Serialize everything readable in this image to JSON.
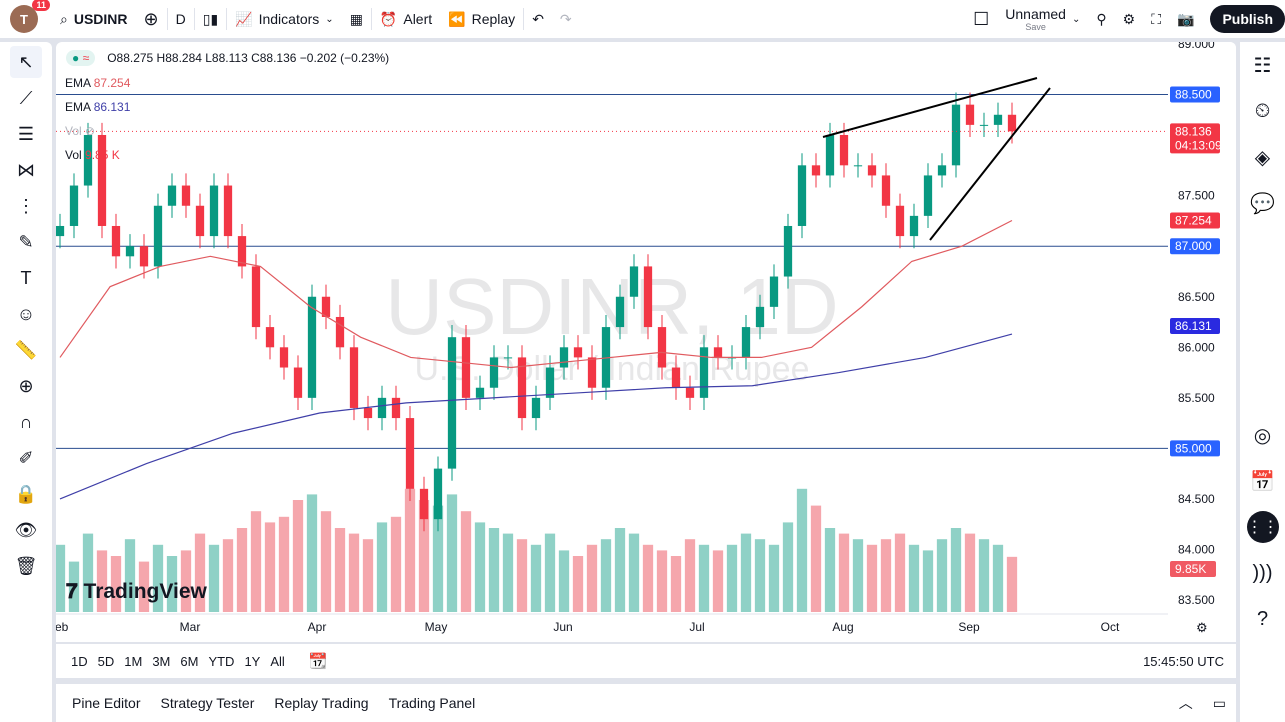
{
  "topbar": {
    "avatar_letter": "T",
    "notifications": "11",
    "symbol": "USDINR",
    "interval": "D",
    "indicators": "Indicators",
    "alert": "Alert",
    "replay": "Replay",
    "layout_name": "Unnamed",
    "layout_status": "Save",
    "publish": "Publish"
  },
  "legend": {
    "ohlc": "O88.275 H88.284 L88.113 C88.136 −0.202 (−0.23%)",
    "ema1_label": "EMA",
    "ema1_value": "87.254",
    "ema2_label": "EMA",
    "ema2_value": "86.131",
    "vol_label": "Vol",
    "vol2_label": "Vol",
    "vol_value": "9.85 K"
  },
  "watermark": {
    "title": "USDINR, 1D",
    "subtitle": "U.S. Dollar / Indian Rupee"
  },
  "logo": "TradingView",
  "colors": {
    "up": "#089981",
    "down": "#f23645",
    "vol_up": "#8fd1c6",
    "vol_down": "#f5a6ac",
    "ema1": "#e05a5f",
    "ema2": "#3f3fa8",
    "hline": "#2962ff"
  },
  "chart_data": {
    "type": "candlestick",
    "y_ticks": [
      "89.000",
      "87.500",
      "86.500",
      "86.000",
      "85.500",
      "84.500",
      "84.000",
      "83.500"
    ],
    "ylim": [
      83.5,
      89.0
    ],
    "x_ticks": [
      "Feb",
      "Mar",
      "Apr",
      "May",
      "Jun",
      "Jul",
      "Aug",
      "Sep",
      "Oct"
    ],
    "closes": [
      87.2,
      87.6,
      88.1,
      87.2,
      86.9,
      87.0,
      86.8,
      87.4,
      87.6,
      87.4,
      87.1,
      87.6,
      87.1,
      86.8,
      86.2,
      86.0,
      85.8,
      85.5,
      86.5,
      86.3,
      86.0,
      85.4,
      85.3,
      85.5,
      85.3,
      84.6,
      84.3,
      84.8,
      86.1,
      85.5,
      85.6,
      85.9,
      85.9,
      85.3,
      85.5,
      85.8,
      86.0,
      85.9,
      85.6,
      86.2,
      86.5,
      86.8,
      86.2,
      85.8,
      85.6,
      85.5,
      86.0,
      85.9,
      85.9,
      86.2,
      86.4,
      86.7,
      87.2,
      87.8,
      87.7,
      88.1,
      87.8,
      87.8,
      87.7,
      87.4,
      87.1,
      87.3,
      87.7,
      87.8,
      88.4,
      88.2,
      88.2,
      88.3,
      88.136
    ],
    "volume_k": [
      12,
      9,
      14,
      11,
      10,
      13,
      9,
      12,
      10,
      11,
      14,
      12,
      13,
      15,
      18,
      16,
      17,
      20,
      21,
      18,
      15,
      14,
      13,
      16,
      17,
      22,
      20,
      19,
      21,
      18,
      16,
      15,
      14,
      13,
      12,
      14,
      11,
      10,
      12,
      13,
      15,
      14,
      12,
      11,
      10,
      13,
      12,
      11,
      12,
      14,
      13,
      12,
      16,
      22,
      19,
      15,
      14,
      13,
      12,
      13,
      14,
      12,
      11,
      13,
      15,
      14,
      13,
      12,
      9.85
    ],
    "ema1": [
      85.9,
      86.6,
      86.8,
      86.9,
      86.8,
      86.4,
      86.1,
      85.9,
      85.85,
      85.8,
      85.85,
      85.9,
      85.95,
      85.9,
      85.9,
      86.0,
      86.4,
      86.85,
      87.0,
      87.254
    ],
    "ema2": [
      84.5,
      84.85,
      85.15,
      85.35,
      85.45,
      85.5,
      85.55,
      85.6,
      85.62,
      85.75,
      85.9,
      86.131
    ],
    "horizontal_lines": [
      "88.500",
      "87.000",
      "85.000"
    ],
    "last_price": "88.136",
    "countdown": "04:13:09",
    "ema1_label": "87.254",
    "ema2_label": "86.131",
    "volume_label": "9.85K"
  },
  "range_buttons": [
    "1D",
    "5D",
    "1M",
    "3M",
    "6M",
    "YTD",
    "1Y",
    "All"
  ],
  "clock": "15:45:50 UTC",
  "bottom_tabs": [
    "Pine Editor",
    "Strategy Tester",
    "Replay Trading",
    "Trading Panel"
  ]
}
